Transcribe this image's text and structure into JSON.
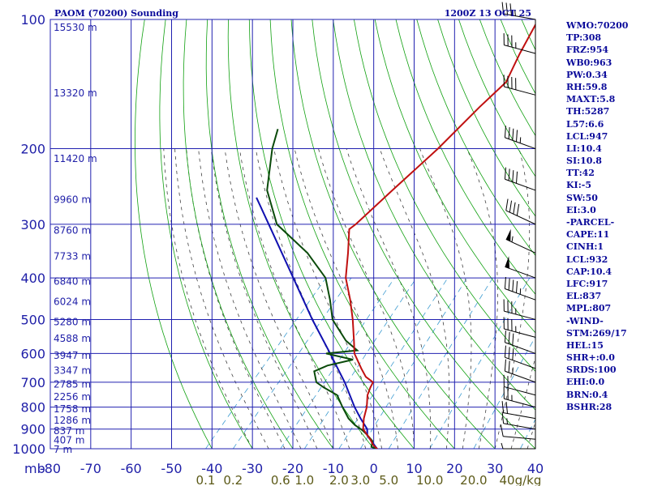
{
  "title": "PAOM (70200) Sounding",
  "valid_time": "1200Z 13 OCT 25",
  "indices": [
    "WMO:70200",
    "TP:308",
    "FRZ:954",
    "WB0:963",
    "PW:0.34",
    "RH:59.8",
    "MAXT:5.8",
    "TH:5287",
    "L57:6.6",
    "LCL:947",
    "LI:10.4",
    "SI:10.8",
    "TT:42",
    "KI:-5",
    "SW:50",
    "EI:3.0",
    "-PARCEL-",
    "CAPE:11",
    "CINH:1",
    "LCL:932",
    "CAP:10.4",
    "LFC:917",
    "EL:837",
    "MPL:807",
    "-WIND-",
    "STM:269/17",
    "HEL:15",
    "SHR+:0.0",
    "SRDS:100",
    "EHI:0.0",
    "BRN:0.4",
    "BSHR:28"
  ],
  "colors": {
    "grid": "#2020b0",
    "dry_adiabat": "#10a010",
    "moist_adiabat": "#404040",
    "mixing_ratio": "#3a9ad0",
    "temperature": "#c01010",
    "dewpoint": "#0a4a0a",
    "parcel": "#1010b0",
    "text": "#0a0a9a"
  },
  "chart_data": {
    "type": "skew-t",
    "title": "PAOM (70200) Sounding",
    "time": "1200Z 13 OCT 25",
    "pressure_unit_label": "mb",
    "pressure_ticks": [
      100,
      200,
      300,
      400,
      500,
      600,
      700,
      800,
      900,
      1000
    ],
    "pressure_range": [
      100,
      1000
    ],
    "temperature_ticks": [
      -80,
      -70,
      -60,
      -50,
      -40,
      -30,
      -20,
      -10,
      0,
      10,
      20,
      30,
      40
    ],
    "temperature_range_at_bottom": [
      -80,
      40
    ],
    "height_labels": [
      {
        "p": 104,
        "label": "15530 m"
      },
      {
        "p": 148,
        "label": "13320 m"
      },
      {
        "p": 210,
        "label": "11420 m"
      },
      {
        "p": 262,
        "label": "9960 m"
      },
      {
        "p": 309,
        "label": "8760 m"
      },
      {
        "p": 355,
        "label": "7733 m"
      },
      {
        "p": 406,
        "label": "6840 m"
      },
      {
        "p": 453,
        "label": "6024 m"
      },
      {
        "p": 505,
        "label": "5280 m"
      },
      {
        "p": 552,
        "label": "4588 m"
      },
      {
        "p": 604,
        "label": "3947 m"
      },
      {
        "p": 655,
        "label": "3347 m"
      },
      {
        "p": 705,
        "label": "2785 m"
      },
      {
        "p": 754,
        "label": "2256 m"
      },
      {
        "p": 805,
        "label": "1758 m"
      },
      {
        "p": 855,
        "label": "1286 m"
      },
      {
        "p": 905,
        "label": "837 m"
      },
      {
        "p": 952,
        "label": "407 m"
      },
      {
        "p": 1000,
        "label": "7 m"
      }
    ],
    "mixing_ratio_labels": [
      "0.1",
      "0.2",
      "0.6",
      "1.0",
      "2.0",
      "3.0",
      "5.0",
      "10.0",
      "20.0",
      "40g/kg"
    ],
    "mixing_ratio_values": [
      0.1,
      0.2,
      0.6,
      1.0,
      2.0,
      3.0,
      5.0,
      10.0,
      20.0,
      40.0
    ],
    "temperature_profile": [
      {
        "p": 1002,
        "t": 1.0
      },
      {
        "p": 980,
        "t": -1.0
      },
      {
        "p": 950,
        "t": -3.0
      },
      {
        "p": 925,
        "t": -5.0
      },
      {
        "p": 900,
        "t": -7.0
      },
      {
        "p": 850,
        "t": -9.2
      },
      {
        "p": 800,
        "t": -11.0
      },
      {
        "p": 750,
        "t": -13.5
      },
      {
        "p": 720,
        "t": -14.5
      },
      {
        "p": 700,
        "t": -15.0
      },
      {
        "p": 680,
        "t": -18.0
      },
      {
        "p": 650,
        "t": -21.0
      },
      {
        "p": 600,
        "t": -26.0
      },
      {
        "p": 560,
        "t": -29.0
      },
      {
        "p": 500,
        "t": -34.0
      },
      {
        "p": 450,
        "t": -39.0
      },
      {
        "p": 400,
        "t": -45.0
      },
      {
        "p": 350,
        "t": -50.0
      },
      {
        "p": 308,
        "t": -55.0
      },
      {
        "p": 300,
        "t": -54.5
      },
      {
        "p": 250,
        "t": -53.0
      },
      {
        "p": 200,
        "t": -51.0
      },
      {
        "p": 160,
        "t": -50.0
      },
      {
        "p": 140,
        "t": -49.0
      },
      {
        "p": 120,
        "t": -52.0
      },
      {
        "p": 100,
        "t": -55.0
      }
    ],
    "dewpoint_profile": [
      {
        "p": 1002,
        "td": 1.0
      },
      {
        "p": 990,
        "td": -1.0
      },
      {
        "p": 960,
        "td": -2.0
      },
      {
        "p": 925,
        "td": -5.0
      },
      {
        "p": 905,
        "td": -7.0
      },
      {
        "p": 880,
        "td": -10.0
      },
      {
        "p": 850,
        "td": -13.0
      },
      {
        "p": 800,
        "td": -17.0
      },
      {
        "p": 750,
        "td": -21.0
      },
      {
        "p": 720,
        "td": -26.0
      },
      {
        "p": 700,
        "td": -29.0
      },
      {
        "p": 660,
        "td": -32.0
      },
      {
        "p": 640,
        "td": -30.0
      },
      {
        "p": 620,
        "td": -25.0
      },
      {
        "p": 600,
        "td": -33.0
      },
      {
        "p": 590,
        "td": -26.0
      },
      {
        "p": 560,
        "td": -31.0
      },
      {
        "p": 500,
        "td": -39.0
      },
      {
        "p": 450,
        "td": -44.0
      },
      {
        "p": 400,
        "td": -50.0
      },
      {
        "p": 350,
        "td": -60.0
      },
      {
        "p": 300,
        "td": -74.0
      },
      {
        "p": 250,
        "td": -84.0
      },
      {
        "p": 200,
        "td": -92.0
      },
      {
        "p": 180,
        "td": -95.0
      }
    ],
    "parcel_path": [
      {
        "p": 1002,
        "t": 1.0
      },
      {
        "p": 932,
        "t": -4.5
      },
      {
        "p": 900,
        "t": -6.0
      },
      {
        "p": 850,
        "t": -10.0
      },
      {
        "p": 800,
        "t": -14.0
      },
      {
        "p": 700,
        "t": -22.0
      },
      {
        "p": 600,
        "t": -32.0
      },
      {
        "p": 500,
        "t": -44.0
      },
      {
        "p": 400,
        "t": -58.0
      },
      {
        "p": 300,
        "t": -76.0
      },
      {
        "p": 260,
        "t": -85.0
      }
    ],
    "wind_barbs": [
      {
        "p": 1000,
        "dir": 270,
        "spd": 5
      },
      {
        "p": 950,
        "dir": 275,
        "spd": 10
      },
      {
        "p": 900,
        "dir": 280,
        "spd": 15
      },
      {
        "p": 850,
        "dir": 280,
        "spd": 20
      },
      {
        "p": 800,
        "dir": 285,
        "spd": 25
      },
      {
        "p": 750,
        "dir": 285,
        "spd": 20
      },
      {
        "p": 700,
        "dir": 290,
        "spd": 25
      },
      {
        "p": 650,
        "dir": 290,
        "spd": 30
      },
      {
        "p": 600,
        "dir": 290,
        "spd": 30
      },
      {
        "p": 550,
        "dir": 285,
        "spd": 35
      },
      {
        "p": 500,
        "dir": 285,
        "spd": 35
      },
      {
        "p": 450,
        "dir": 290,
        "spd": 45
      },
      {
        "p": 400,
        "dir": 290,
        "spd": 50
      },
      {
        "p": 350,
        "dir": 295,
        "spd": 55
      },
      {
        "p": 300,
        "dir": 295,
        "spd": 40
      },
      {
        "p": 250,
        "dir": 290,
        "spd": 40
      },
      {
        "p": 200,
        "dir": 290,
        "spd": 45
      },
      {
        "p": 150,
        "dir": 285,
        "spd": 40
      },
      {
        "p": 120,
        "dir": 285,
        "spd": 35
      },
      {
        "p": 100,
        "dir": 280,
        "spd": 35
      }
    ]
  }
}
